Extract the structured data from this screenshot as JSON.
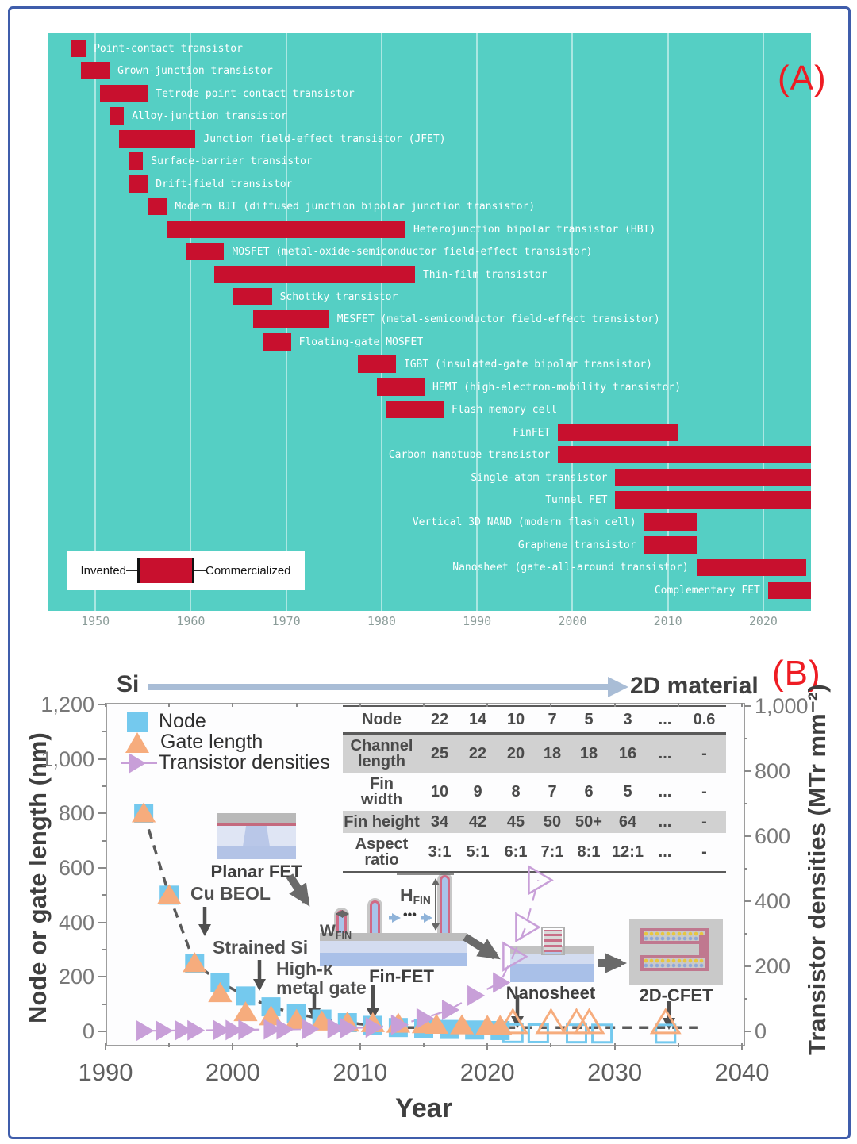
{
  "chart_data": [
    {
      "id": "A",
      "type": "bar",
      "variant": "gantt-timeline",
      "panel_label": "(A)",
      "background_color": "#55cfc4",
      "bar_color": "#c8102e",
      "xlabel": "",
      "x_ticks": [
        1950,
        1960,
        1970,
        1980,
        1990,
        2000,
        2010,
        2020
      ],
      "x_range": [
        1945,
        2025
      ],
      "legend": {
        "invented_label": "Invented",
        "commercialized_label": "Commercialized"
      },
      "bars": [
        {
          "name": "Point-contact transistor",
          "invented": 1947.5,
          "commercialized": 1949,
          "label_side": "right"
        },
        {
          "name": "Grown-junction transistor",
          "invented": 1948.5,
          "commercialized": 1951.5,
          "label_side": "right"
        },
        {
          "name": "Tetrode point-contact transistor",
          "invented": 1950.5,
          "commercialized": 1955.5,
          "label_side": "right"
        },
        {
          "name": "Alloy-junction transistor",
          "invented": 1951.5,
          "commercialized": 1953,
          "label_side": "right"
        },
        {
          "name": "Junction field-effect transistor (JFET)",
          "invented": 1952.5,
          "commercialized": 1960.5,
          "label_side": "right"
        },
        {
          "name": "Surface-barrier transistor",
          "invented": 1953.5,
          "commercialized": 1955,
          "label_side": "right"
        },
        {
          "name": "Drift-field transistor",
          "invented": 1953.5,
          "commercialized": 1955.5,
          "label_side": "right"
        },
        {
          "name": "Modern BJT (diffused junction bipolar junction transistor)",
          "invented": 1955.5,
          "commercialized": 1957.5,
          "label_side": "right"
        },
        {
          "name": "Heterojunction bipolar transistor (HBT)",
          "invented": 1957.5,
          "commercialized": 1982.5,
          "label_side": "right"
        },
        {
          "name": "MOSFET (metal-oxide-semiconductor field-effect transistor)",
          "invented": 1959.5,
          "commercialized": 1963.5,
          "label_side": "right"
        },
        {
          "name": "Thin-film transistor",
          "invented": 1962.5,
          "commercialized": 1983.5,
          "label_side": "right"
        },
        {
          "name": "Schottky transistor",
          "invented": 1964.5,
          "commercialized": 1968.5,
          "label_side": "right"
        },
        {
          "name": "MESFET (metal-semiconductor field-effect transistor)",
          "invented": 1966.5,
          "commercialized": 1974.5,
          "label_side": "right"
        },
        {
          "name": "Floating-gate MOSFET",
          "invented": 1967.5,
          "commercialized": 1970.5,
          "label_side": "right"
        },
        {
          "name": "IGBT (insulated-gate bipolar transistor)",
          "invented": 1977.5,
          "commercialized": 1981.5,
          "label_side": "right"
        },
        {
          "name": "HEMT (high-electron-mobility transistor)",
          "invented": 1979.5,
          "commercialized": 1984.5,
          "label_side": "right"
        },
        {
          "name": "Flash memory cell",
          "invented": 1980.5,
          "commercialized": 1986.5,
          "label_side": "right"
        },
        {
          "name": "FinFET",
          "invented": 1998.5,
          "commercialized": 2011,
          "label_side": "left"
        },
        {
          "name": "Carbon nanotube transistor",
          "invented": 1998.5,
          "commercialized": 2025,
          "label_side": "left"
        },
        {
          "name": "Single-atom transistor",
          "invented": 2004.5,
          "commercialized": 2025,
          "label_side": "left"
        },
        {
          "name": "Tunnel FET",
          "invented": 2004.5,
          "commercialized": 2025,
          "label_side": "left"
        },
        {
          "name": "Vertical 3D NAND (modern flash cell)",
          "invented": 2007.5,
          "commercialized": 2013,
          "label_side": "left"
        },
        {
          "name": "Graphene transistor",
          "invented": 2007.5,
          "commercialized": 2013,
          "label_side": "left"
        },
        {
          "name": "Nanosheet (gate-all-around transistor)",
          "invented": 2013,
          "commercialized": 2024.5,
          "label_side": "left"
        },
        {
          "name": "Complementary FET",
          "invented": 2020.5,
          "commercialized": 2025,
          "label_side": "left"
        }
      ]
    },
    {
      "id": "B",
      "type": "scatter",
      "panel_label": "(B)",
      "top_arrow": {
        "left": "Si",
        "right": "2D material"
      },
      "xlabel": "Year",
      "x_ticks": [
        1990,
        2000,
        2010,
        2020,
        2030,
        2040
      ],
      "x_range": [
        1990,
        2040
      ],
      "y_left": {
        "label": "Node or gate length (nm)",
        "tick_labels": [
          "1,200",
          "1,000",
          "800",
          "600",
          "400",
          "200",
          "0"
        ],
        "tick_values": [
          1200,
          1000,
          800,
          600,
          400,
          200,
          0
        ],
        "range": [
          0,
          1200
        ]
      },
      "y_right": {
        "label": "Transistor densities (MTr mm⁻²)",
        "tick_labels": [
          "1,000",
          "800",
          "600",
          "400",
          "200",
          "0"
        ],
        "tick_values": [
          1000,
          800,
          600,
          400,
          200,
          0
        ],
        "range": [
          0,
          1000
        ]
      },
      "legend": [
        {
          "marker": "square",
          "label": "Node",
          "color": "#74c9ee"
        },
        {
          "marker": "triangle-up",
          "label": "Gate length",
          "color": "#f6ac7d"
        },
        {
          "marker": "triangle-right",
          "label": "Transistor densities",
          "color": "#c89fd8"
        }
      ],
      "series": [
        {
          "name": "Node",
          "marker": "square",
          "color": "#74c9ee",
          "axis": "left",
          "points_filled": [
            [
              1993,
              800
            ],
            [
              1995,
              500
            ],
            [
              1997,
              250
            ],
            [
              1999,
              180
            ],
            [
              2001,
              130
            ],
            [
              2003,
              90
            ],
            [
              2005,
              65
            ],
            [
              2007,
              45
            ],
            [
              2009,
              32
            ],
            [
              2011,
              22
            ],
            [
              2013,
              14
            ],
            [
              2015,
              10
            ],
            [
              2017,
              7
            ],
            [
              2019,
              5
            ],
            [
              2021,
              3
            ]
          ],
          "points_open": [
            [
              2022,
              2
            ],
            [
              2024,
              1.5
            ],
            [
              2027,
              1
            ],
            [
              2029,
              0.7
            ],
            [
              2034,
              0.4
            ]
          ]
        },
        {
          "name": "Gate length",
          "marker": "triangle-up",
          "color": "#f6ac7d",
          "axis": "left",
          "points_filled": [
            [
              1993,
              800
            ],
            [
              1995,
              500
            ],
            [
              1997,
              250
            ],
            [
              1999,
              140
            ],
            [
              2001,
              70
            ],
            [
              2003,
              55
            ],
            [
              2005,
              42
            ],
            [
              2007,
              36
            ],
            [
              2009,
              32
            ],
            [
              2011,
              30
            ],
            [
              2013,
              28
            ],
            [
              2015,
              26
            ],
            [
              2016,
              24
            ],
            [
              2018,
              22
            ],
            [
              2020,
              20
            ],
            [
              2021,
              20
            ]
          ],
          "points_open": [
            [
              2022,
              20
            ],
            [
              2025,
              20
            ],
            [
              2027,
              20
            ],
            [
              2028,
              20
            ],
            [
              2034,
              20
            ]
          ]
        },
        {
          "name": "Transistor densities",
          "marker": "triangle-right",
          "color": "#c89fd8",
          "axis": "right",
          "points_filled": [
            [
              1993,
              2
            ],
            [
              1994.5,
              2
            ],
            [
              1996,
              3
            ],
            [
              1997,
              3
            ],
            [
              1999,
              4
            ],
            [
              2000,
              4
            ],
            [
              2001,
              5
            ],
            [
              2003,
              6
            ],
            [
              2004,
              6
            ],
            [
              2006,
              7
            ],
            [
              2008,
              9
            ],
            [
              2009,
              10
            ],
            [
              2011,
              12
            ],
            [
              2013,
              20
            ],
            [
              2015,
              40
            ],
            [
              2017,
              66
            ],
            [
              2019,
              110
            ],
            [
              2021,
              150
            ]
          ],
          "points_open": [
            [
              2022,
              230
            ],
            [
              2023,
              320
            ],
            [
              2024,
              465
            ]
          ]
        }
      ],
      "annotations": [
        {
          "id": "cu_beol",
          "text": "Cu BEOL"
        },
        {
          "id": "strained_si",
          "text": "Strained Si"
        },
        {
          "id": "high_k",
          "text": "High-κ\nmetal gate"
        }
      ],
      "diagram_labels": {
        "planar": "Planar FET",
        "finfet": "Fin-FET",
        "nanosheet": "Nanosheet",
        "cfet": "2D-CFET",
        "hfin_main": "H",
        "hfin_sub": "FIN",
        "wfin_main": "W",
        "wfin_sub": "FIN",
        "dots": "•••"
      },
      "inset_table": {
        "header": [
          "Node",
          "22",
          "14",
          "10",
          "7",
          "5",
          "3",
          "...",
          "0.6"
        ],
        "rows": [
          {
            "label": "Channel\nlength",
            "values": [
              "25",
              "22",
              "20",
              "18",
              "18",
              "16",
              "...",
              "-"
            ],
            "shaded": true
          },
          {
            "label": "Fin\nwidth",
            "values": [
              "10",
              "9",
              "8",
              "7",
              "6",
              "5",
              "...",
              "-"
            ],
            "shaded": false
          },
          {
            "label": "Fin height",
            "values": [
              "34",
              "42",
              "45",
              "50",
              "50+",
              "64",
              "...",
              "-"
            ],
            "shaded": true
          },
          {
            "label": "Aspect\nratio",
            "values": [
              "3:1",
              "5:1",
              "6:1",
              "7:1",
              "8:1",
              "12:1",
              "...",
              "-"
            ],
            "shaded": false
          }
        ]
      }
    }
  ]
}
